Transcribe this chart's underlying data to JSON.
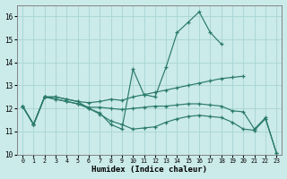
{
  "xlabel": "Humidex (Indice chaleur)",
  "bg_color": "#cbeaea",
  "grid_color": "#a8d4d4",
  "line_color": "#2a7a6a",
  "xlim": [
    -0.5,
    23.5
  ],
  "ylim": [
    10,
    16.5
  ],
  "yticks": [
    10,
    11,
    12,
    13,
    14,
    15,
    16
  ],
  "xticks": [
    0,
    1,
    2,
    3,
    4,
    5,
    6,
    7,
    8,
    9,
    10,
    11,
    12,
    13,
    14,
    15,
    16,
    17,
    18,
    19,
    20,
    21,
    22,
    23
  ],
  "line1": {
    "x": [
      0,
      1,
      2,
      3,
      4,
      5,
      6,
      7,
      8,
      9,
      10,
      11,
      12,
      13,
      14,
      15,
      16,
      17,
      18
    ],
    "y": [
      12.1,
      11.3,
      12.5,
      12.5,
      12.4,
      12.3,
      12.0,
      11.8,
      11.3,
      11.1,
      13.7,
      12.6,
      12.5,
      13.8,
      15.3,
      15.75,
      16.2,
      15.3,
      14.8
    ]
  },
  "line2": {
    "x": [
      0,
      1,
      2,
      3,
      4,
      5,
      6,
      7,
      8,
      9,
      10,
      11,
      12,
      13,
      14,
      15,
      16,
      17,
      18,
      19,
      20
    ],
    "y": [
      12.1,
      11.3,
      12.5,
      12.5,
      12.4,
      12.3,
      12.25,
      12.3,
      12.4,
      12.35,
      12.5,
      12.6,
      12.7,
      12.8,
      12.9,
      13.0,
      13.1,
      13.2,
      13.3,
      13.35,
      13.4
    ]
  },
  "line3": {
    "x": [
      0,
      1,
      2,
      3,
      4,
      5,
      6,
      7,
      8,
      9,
      10,
      11,
      12,
      13,
      14,
      15,
      16,
      17,
      18,
      19,
      20,
      21,
      22,
      23
    ],
    "y": [
      12.1,
      11.3,
      12.5,
      12.4,
      12.3,
      12.2,
      12.05,
      12.05,
      12.0,
      11.95,
      12.0,
      12.05,
      12.1,
      12.1,
      12.15,
      12.2,
      12.2,
      12.15,
      12.1,
      11.9,
      11.85,
      11.1,
      11.6,
      10.05
    ]
  },
  "line4": {
    "x": [
      0,
      1,
      2,
      3,
      4,
      5,
      6,
      7,
      8,
      9,
      10,
      11,
      12,
      13,
      14,
      15,
      16,
      17,
      18,
      19,
      20,
      21,
      22,
      23
    ],
    "y": [
      12.1,
      11.3,
      12.5,
      12.4,
      12.3,
      12.2,
      12.0,
      11.75,
      11.45,
      11.3,
      11.1,
      11.15,
      11.2,
      11.4,
      11.55,
      11.65,
      11.7,
      11.65,
      11.6,
      11.4,
      11.1,
      11.05,
      11.55,
      10.05
    ]
  }
}
